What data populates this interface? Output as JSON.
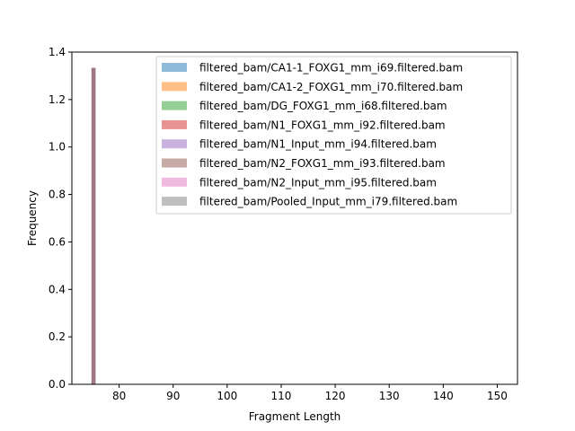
{
  "chart_data": {
    "type": "bar",
    "title": "",
    "xlabel": "Fragment Length",
    "ylabel": "Frequency",
    "xlim": [
      71.25,
      153.75
    ],
    "ylim": [
      0,
      1.4
    ],
    "xticks": [
      80,
      90,
      100,
      110,
      120,
      130,
      140,
      150
    ],
    "yticks": [
      0.0,
      0.2,
      0.4,
      0.6,
      0.8,
      1.0,
      1.2,
      1.4
    ],
    "xtick_labels": [
      "80",
      "90",
      "100",
      "110",
      "120",
      "130",
      "140",
      "150"
    ],
    "ytick_labels": [
      "0.0",
      "0.2",
      "0.4",
      "0.6",
      "0.8",
      "1.0",
      "1.2",
      "1.4"
    ],
    "grid": false,
    "legend_position": "top-right",
    "bins": [
      {
        "x_start": 74.9,
        "x_end": 75.6
      }
    ],
    "series": [
      {
        "name": "filtered_bam/CA1-1_FOXG1_mm_i69.filtered.bam",
        "color": "#1f77b4",
        "values": [
          1.333
        ]
      },
      {
        "name": "filtered_bam/CA1-2_FOXG1_mm_i70.filtered.bam",
        "color": "#ff7f0e",
        "values": [
          1.333
        ]
      },
      {
        "name": "filtered_bam/DG_FOXG1_mm_i68.filtered.bam",
        "color": "#2ca02c",
        "values": [
          1.333
        ]
      },
      {
        "name": "filtered_bam/N1_FOXG1_mm_i92.filtered.bam",
        "color": "#d62728",
        "values": [
          1.333
        ]
      },
      {
        "name": "filtered_bam/N1_Input_mm_i94.filtered.bam",
        "color": "#9467bd",
        "values": [
          1.333
        ]
      },
      {
        "name": "filtered_bam/N2_FOXG1_mm_i93.filtered.bam",
        "color": "#8c564b",
        "values": [
          1.333
        ]
      },
      {
        "name": "filtered_bam/N2_Input_mm_i95.filtered.bam",
        "color": "#e377c2",
        "values": [
          1.333
        ]
      },
      {
        "name": "filtered_bam/Pooled_Input_mm_i79.filtered.bam",
        "color": "#7f7f7f",
        "values": [
          1.333
        ]
      }
    ]
  }
}
